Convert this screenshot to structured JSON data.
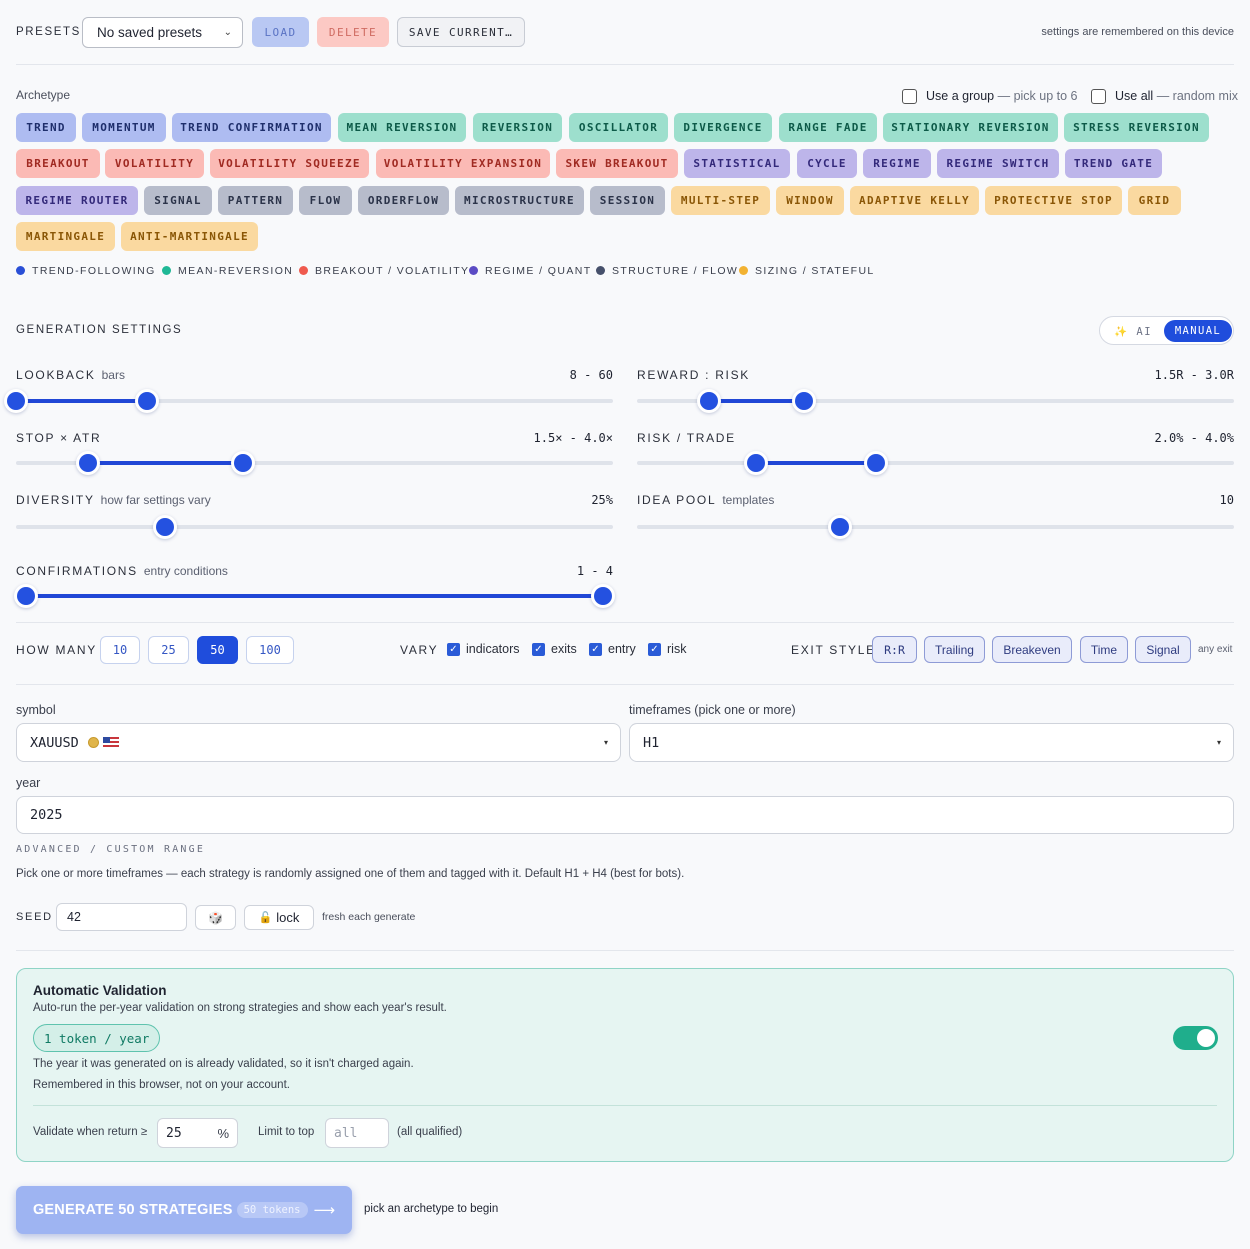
{
  "presets": {
    "label": "PRESETS",
    "selected": "No saved presets",
    "load": "LOAD",
    "delete": "DELETE",
    "save": "SAVE CURRENT…",
    "note": "settings are remembered on this device"
  },
  "archetype": {
    "label": "Archetype",
    "use_group": "Use a group",
    "use_group_hint": "— pick up to 6",
    "use_all": "Use all",
    "use_all_hint": "— random mix",
    "chips": [
      {
        "label": "TREND",
        "group": "trend"
      },
      {
        "label": "MOMENTUM",
        "group": "trend"
      },
      {
        "label": "TREND CONFIRMATION",
        "group": "trend"
      },
      {
        "label": "MEAN REVERSION",
        "group": "mean"
      },
      {
        "label": "REVERSION",
        "group": "mean"
      },
      {
        "label": "OSCILLATOR",
        "group": "mean"
      },
      {
        "label": "DIVERGENCE",
        "group": "mean"
      },
      {
        "label": "RANGE FADE",
        "group": "mean"
      },
      {
        "label": "STATIONARY REVERSION",
        "group": "mean"
      },
      {
        "label": "STRESS REVERSION",
        "group": "mean"
      },
      {
        "label": "BREAKOUT",
        "group": "breakout"
      },
      {
        "label": "VOLATILITY",
        "group": "breakout"
      },
      {
        "label": "VOLATILITY SQUEEZE",
        "group": "breakout"
      },
      {
        "label": "VOLATILITY EXPANSION",
        "group": "breakout"
      },
      {
        "label": "SKEW BREAKOUT",
        "group": "breakout"
      },
      {
        "label": "STATISTICAL",
        "group": "regime"
      },
      {
        "label": "CYCLE",
        "group": "regime"
      },
      {
        "label": "REGIME",
        "group": "regime"
      },
      {
        "label": "REGIME SWITCH",
        "group": "regime"
      },
      {
        "label": "TREND GATE",
        "group": "regime"
      },
      {
        "label": "REGIME ROUTER",
        "group": "regime"
      },
      {
        "label": "SIGNAL",
        "group": "structure"
      },
      {
        "label": "PATTERN",
        "group": "structure"
      },
      {
        "label": "FLOW",
        "group": "structure"
      },
      {
        "label": "ORDERFLOW",
        "group": "structure"
      },
      {
        "label": "MICROSTRUCTURE",
        "group": "structure"
      },
      {
        "label": "SESSION",
        "group": "structure"
      },
      {
        "label": "MULTI-STEP",
        "group": "sizing"
      },
      {
        "label": "WINDOW",
        "group": "sizing"
      },
      {
        "label": "ADAPTIVE KELLY",
        "group": "sizing"
      },
      {
        "label": "PROTECTIVE STOP",
        "group": "sizing"
      },
      {
        "label": "GRID",
        "group": "sizing"
      },
      {
        "label": "MARTINGALE",
        "group": "sizing"
      },
      {
        "label": "ANTI-MARTINGALE",
        "group": "sizing"
      }
    ],
    "legend": [
      {
        "label": "TREND-FOLLOWING",
        "color": "#2a4fd6"
      },
      {
        "label": "MEAN-REVERSION",
        "color": "#1fb896"
      },
      {
        "label": "BREAKOUT / VOLATILITY",
        "color": "#ef5a4e"
      },
      {
        "label": "REGIME / QUANT",
        "color": "#5b4bc4"
      },
      {
        "label": "STRUCTURE / FLOW",
        "color": "#46506b"
      },
      {
        "label": "SIZING / STATEFUL",
        "color": "#f2b232"
      }
    ]
  },
  "generation": {
    "title": "GENERATION SETTINGS",
    "mode_ai": "AI",
    "mode_manual": "MANUAL",
    "sliders": {
      "lookback": {
        "label": "LOOKBACK",
        "sub": "bars",
        "value": "8 - 60",
        "low": 0.0,
        "high": 0.22
      },
      "reward_risk": {
        "label": "REWARD : RISK",
        "value": "1.5R - 3.0R",
        "low": 0.12,
        "high": 0.28
      },
      "stop_atr": {
        "label": "STOP × ATR",
        "value": "1.5× - 4.0×",
        "low": 0.12,
        "high": 0.38
      },
      "risk_trade": {
        "label": "RISK / TRADE",
        "value": "2.0% - 4.0%",
        "low": 0.2,
        "high": 0.4
      },
      "diversity": {
        "label": "DIVERSITY",
        "sub": "how far settings vary",
        "value": "25%",
        "level": 0.25
      },
      "idea_pool": {
        "label": "IDEA POOL",
        "sub": "templates",
        "value": "10",
        "level": 0.34
      },
      "confirmations": {
        "label": "CONFIRMATIONS",
        "sub": "entry conditions",
        "value": "1 - 4",
        "low": 0.0,
        "high": 1.0
      }
    }
  },
  "how_many": {
    "label": "HOW MANY",
    "options": [
      "10",
      "25",
      "50",
      "100"
    ],
    "selected": "50"
  },
  "vary": {
    "label": "VARY",
    "items": [
      "indicators",
      "exits",
      "entry",
      "risk"
    ]
  },
  "exit_style": {
    "label": "EXIT STYLE",
    "options": [
      "R:R",
      "Trailing",
      "Breakeven",
      "Time",
      "Signal"
    ],
    "note": "any exit"
  },
  "form": {
    "symbol_label": "symbol",
    "symbol_value": "XAUUSD",
    "timeframes_label": "timeframes (pick one or more)",
    "timeframes_value": "H1",
    "year_label": "year",
    "year_value": "2025",
    "advanced": "ADVANCED / CUSTOM RANGE",
    "help": "Pick one or more timeframes — each strategy is randomly assigned one of them and tagged with it. Default H1 + H4 (best for bots).",
    "seed_label": "SEED",
    "seed_value": "42",
    "lock_label": "lock",
    "seed_note": "fresh each generate"
  },
  "validation": {
    "title": "Automatic Validation",
    "desc": "Auto-run the per-year validation on strong strategies and show each year's result.",
    "token_badge": "1 token / year",
    "line1": "The year it was generated on is already validated, so it isn't charged again.",
    "line2": "Remembered in this browser, not on your account.",
    "return_label": "Validate when return ≥",
    "return_value": "25",
    "return_unit": "%",
    "limit_label": "Limit to top",
    "limit_placeholder": "all",
    "limit_note": "(all qualified)",
    "enabled": true
  },
  "generate": {
    "label": "GENERATE 50 STRATEGIES",
    "tokens": "50 tokens",
    "hint": "pick an archetype to begin"
  }
}
